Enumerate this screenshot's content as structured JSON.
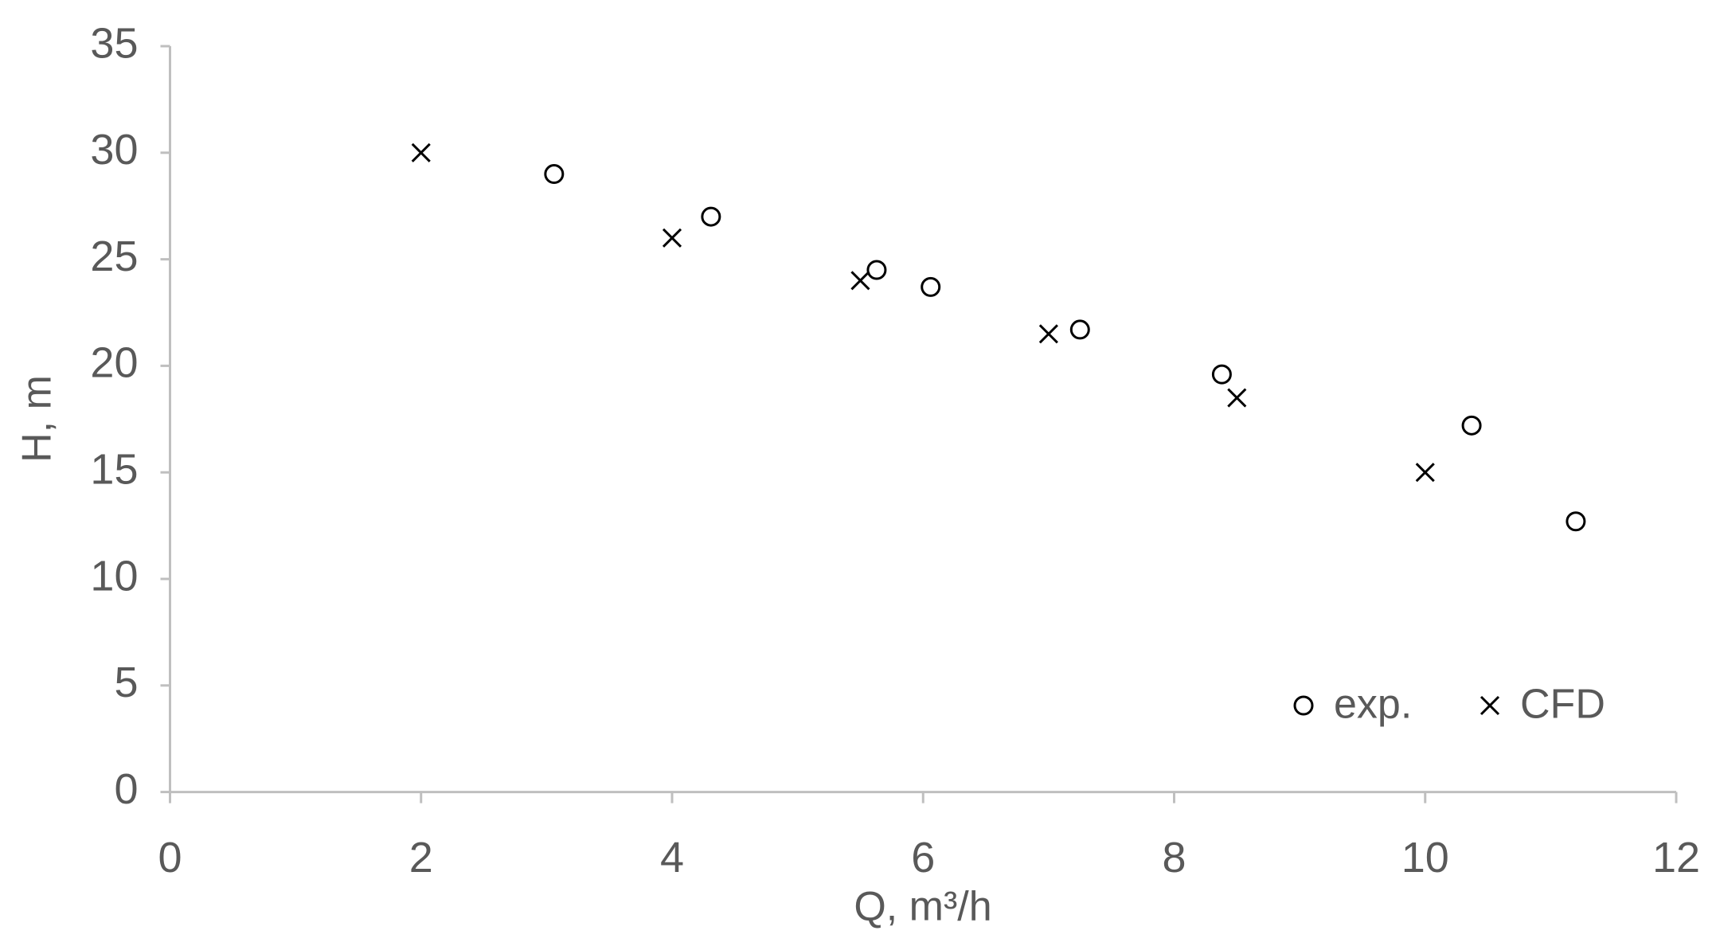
{
  "chart_data": {
    "type": "scatter",
    "x_label": "Q, m³/h",
    "y_label": "H, m",
    "series": [
      {
        "name": "exp.",
        "color": "#000000",
        "marker": "circle",
        "x": [
          3.06,
          4.31,
          5.63,
          6.06,
          7.25,
          8.38,
          10.37,
          11.2
        ],
        "values": [
          29,
          27,
          24.5,
          23.7,
          21.7,
          19.6,
          17.2,
          12.7
        ]
      },
      {
        "name": "CFD",
        "color": "#000000",
        "marker": "cross",
        "x": [
          2,
          4,
          5.5,
          7,
          8.5,
          10
        ],
        "values": [
          30,
          26,
          24,
          21.5,
          18.5,
          15
        ]
      }
    ],
    "xlim": [
      0,
      12
    ],
    "xticks": [
      0,
      2,
      4,
      6,
      8,
      10,
      12
    ],
    "ylim": [
      0,
      35
    ],
    "yticks": [
      0,
      5,
      10,
      15,
      20,
      25,
      30,
      35
    ],
    "grid": false,
    "legend": "lower right"
  }
}
